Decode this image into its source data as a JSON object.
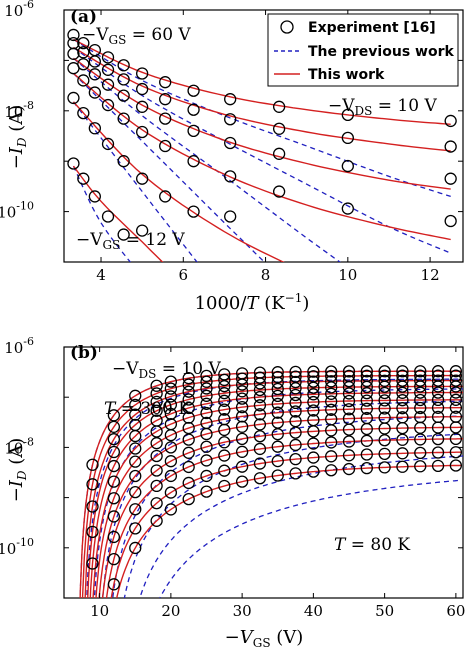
{
  "colors": {
    "experiment": "#000000",
    "previous": "#2020c0",
    "this_work": "#d42020",
    "axis": "#000000"
  },
  "chart_data": [
    {
      "panel_label": "(a)",
      "type": "scatter",
      "xlabel": "1000/T (K⁻¹)",
      "xlabel_parts": {
        "pre": "1000/",
        "var": "T",
        "mid": " (K",
        "sup": "−1",
        "post": ")"
      },
      "ylabel": "−I_D (A)",
      "xlim": [
        3.1,
        12.8
      ],
      "ylim": [
        1e-11,
        1e-06
      ],
      "yscale": "log",
      "xticks": [
        {
          "value": 4,
          "label": "4"
        },
        {
          "value": 6,
          "label": "6"
        },
        {
          "value": 8,
          "label": "8"
        },
        {
          "value": 10,
          "label": "10"
        },
        {
          "value": 12,
          "label": "12"
        }
      ],
      "yticks": [
        {
          "value": 1e-10,
          "base": "10",
          "exp": "-10"
        },
        {
          "value": 1e-08,
          "base": "10",
          "exp": "-8"
        },
        {
          "value": 1e-06,
          "base": "10",
          "exp": "-6"
        }
      ],
      "legend": {
        "placement": "top-right",
        "entries": [
          {
            "label": "Experiment [16]",
            "marker": "circle"
          },
          {
            "label": "The previous work",
            "marker": "dashed"
          },
          {
            "label": "This work",
            "marker": "solid"
          }
        ]
      },
      "annotations": [
        {
          "prefix": "−V",
          "sub": "GS",
          "rest": " = 60 V"
        },
        {
          "prefix": "−V",
          "sub": "DS",
          "rest": " = 10 V"
        },
        {
          "prefix": "−V",
          "sub": "GS",
          "rest": " = 12 V"
        }
      ],
      "series": [
        {
          "x": [
            3.33,
            3.57,
            3.85,
            4.17,
            4.55,
            5.0,
            5.56,
            6.25,
            7.14,
            8.33,
            10.0,
            12.5
          ],
          "y": [
            3.2e-07,
            2.2e-07,
            1.6e-07,
            1.15e-07,
            8e-08,
            5.5e-08,
            3.7e-08,
            2.5e-08,
            1.7e-08,
            1.2e-08,
            8.3e-09,
            6.3e-09
          ]
        },
        {
          "x": [
            3.33,
            3.57,
            3.85,
            4.17,
            4.55,
            5.0,
            5.56,
            6.25,
            7.14,
            8.33,
            10.0,
            12.5
          ],
          "y": [
            2.2e-07,
            1.45e-07,
            9.5e-08,
            6.5e-08,
            4.2e-08,
            2.7e-08,
            1.7e-08,
            1.05e-08,
            6.8e-09,
            4.4e-09,
            2.9e-09,
            1.95e-09
          ]
        },
        {
          "x": [
            3.33,
            3.57,
            3.85,
            4.17,
            4.55,
            5.0,
            5.56,
            6.25,
            7.14,
            8.33,
            10.0,
            12.5
          ],
          "y": [
            1.35e-07,
            8.4e-08,
            5.3e-08,
            3.3e-08,
            2e-08,
            1.2e-08,
            7e-09,
            4e-09,
            2.3e-09,
            1.4e-09,
            8e-10,
            4.5e-10
          ]
        },
        {
          "x": [
            3.33,
            3.57,
            3.85,
            4.17,
            4.55,
            5.0,
            5.56,
            6.25,
            7.14,
            8.33,
            10.0,
            12.5
          ],
          "y": [
            7e-08,
            4e-08,
            2.3e-08,
            1.3e-08,
            7e-09,
            3.8e-09,
            2e-09,
            1e-09,
            5e-10,
            2.5e-10,
            1.15e-10,
            6.5e-11
          ]
        },
        {
          "x": [
            3.33,
            3.57,
            3.85,
            4.17,
            4.55,
            5.0,
            5.56,
            6.25,
            7.14
          ],
          "y": [
            1.8e-08,
            9e-09,
            4.5e-09,
            2.2e-09,
            1e-09,
            4.5e-10,
            2e-10,
            1e-10,
            8e-11
          ]
        },
        {
          "x": [
            3.33,
            3.57,
            3.85,
            4.17,
            4.55,
            5.0
          ],
          "y": [
            9e-10,
            4.5e-10,
            2e-10,
            8e-11,
            3.5e-11,
            4.2e-11
          ]
        }
      ],
      "this_work": [
        {
          "x": [
            3.33,
            5,
            7,
            9,
            11,
            12.5
          ],
          "y": [
            2.6e-07,
            5.8e-08,
            2e-08,
            1.05e-08,
            6.8e-09,
            5.4e-09
          ]
        },
        {
          "x": [
            3.33,
            5,
            7,
            9,
            11,
            12.5
          ],
          "y": [
            1.8e-07,
            3.1e-08,
            8.5e-09,
            3.8e-09,
            2.2e-09,
            1.6e-09
          ]
        },
        {
          "x": [
            3.33,
            5,
            7,
            9,
            11,
            12.5
          ],
          "y": [
            1.1e-07,
            1.3e-08,
            2.6e-09,
            9e-10,
            4.2e-10,
            2.8e-10
          ]
        },
        {
          "x": [
            3.33,
            5,
            7,
            9,
            11,
            12.5
          ],
          "y": [
            5.5e-08,
            4.2e-09,
            5.5e-10,
            1.35e-10,
            5e-11,
            2.8e-11
          ]
        },
        {
          "x": [
            3.33,
            5,
            7,
            9,
            10
          ],
          "y": [
            1.5e-08,
            5.5e-10,
            4e-11,
            6e-12,
            2.5e-12
          ]
        },
        {
          "x": [
            3.33,
            4,
            5,
            6,
            7
          ],
          "y": [
            8e-10,
            1.6e-10,
            2.5e-11,
            4e-12,
            8e-13
          ]
        }
      ],
      "previous_work": [
        {
          "x": [
            3.33,
            5,
            7,
            9,
            11,
            12.5
          ],
          "y": [
            2.6e-07,
            4e-08,
            8e-09,
            2e-09,
            5e-10,
            2e-10
          ]
        },
        {
          "x": [
            3.33,
            5,
            7,
            9,
            11,
            12.5
          ],
          "y": [
            1.8e-07,
            2e-08,
            2.5e-09,
            3.5e-10,
            5e-11,
            1.5e-11
          ]
        },
        {
          "x": [
            3.33,
            5,
            7,
            9,
            11
          ],
          "y": [
            1.1e-07,
            8e-09,
            5e-10,
            3e-11,
            2e-12
          ]
        },
        {
          "x": [
            3.33,
            5,
            7,
            9
          ],
          "y": [
            5.5e-08,
            2.5e-09,
            6e-11,
            1.5e-12
          ]
        },
        {
          "x": [
            3.33,
            5,
            7
          ],
          "y": [
            1.5e-08,
            2.5e-10,
            2e-12
          ]
        },
        {
          "x": [
            3.33,
            4,
            5,
            6
          ],
          "y": [
            8e-10,
            6e-11,
            5e-12,
            4e-13
          ]
        }
      ]
    },
    {
      "panel_label": "(b)",
      "type": "scatter",
      "xlabel": "−V_GS (V)",
      "ylabel": "−I_D (A)",
      "xlim": [
        5,
        61
      ],
      "ylim": [
        1e-11,
        1e-06
      ],
      "yscale": "log",
      "xticks": [
        {
          "value": 10,
          "label": "10"
        },
        {
          "value": 20,
          "label": "20"
        },
        {
          "value": 30,
          "label": "30"
        },
        {
          "value": 40,
          "label": "40"
        },
        {
          "value": 50,
          "label": "50"
        },
        {
          "value": 60,
          "label": "60"
        }
      ],
      "yticks": [
        {
          "value": 1e-10,
          "base": "10",
          "exp": "-10"
        },
        {
          "value": 1e-08,
          "base": "10",
          "exp": "-8"
        },
        {
          "value": 1e-06,
          "base": "10",
          "exp": "-6"
        }
      ],
      "annotations": [
        {
          "prefix": "−V",
          "sub": "DS",
          "rest": " = 10 V"
        },
        {
          "var": "T",
          "rest": " = 300 K"
        },
        {
          "var": "T",
          "rest": " = 80 K"
        }
      ],
      "curves": [
        {
          "Imax": 3.3e-07,
          "V0": 7.0,
          "alpha": 6.6
        },
        {
          "Imax": 2.7e-07,
          "V0": 7.3,
          "alpha": 7.2
        },
        {
          "Imax": 2.15e-07,
          "V0": 7.6,
          "alpha": 7.8
        },
        {
          "Imax": 1.65e-07,
          "V0": 7.9,
          "alpha": 8.3
        },
        {
          "Imax": 1.25e-07,
          "V0": 8.2,
          "alpha": 8.9
        },
        {
          "Imax": 9e-08,
          "V0": 8.5,
          "alpha": 9.5
        },
        {
          "Imax": 6.3e-08,
          "V0": 8.8,
          "alpha": 10.1
        },
        {
          "Imax": 4.2e-08,
          "V0": 9.1,
          "alpha": 10.7
        },
        {
          "Imax": 2.6e-08,
          "V0": 9.4,
          "alpha": 11.3
        },
        {
          "Imax": 1.55e-08,
          "V0": 9.7,
          "alpha": 11.9
        },
        {
          "Imax": 8.5e-09,
          "V0": 10.0,
          "alpha": 12.5
        },
        {
          "Imax": 4.7e-09,
          "V0": 10.3,
          "alpha": 13.2
        }
      ],
      "previous_work": [
        {
          "Imax": 3.3e-07,
          "V0": 7.0,
          "alpha": 6.6
        },
        {
          "Imax": 2.3e-07,
          "V0": 7.8,
          "alpha": 8.6
        },
        {
          "Imax": 1.5e-07,
          "V0": 8.7,
          "alpha": 11.0
        },
        {
          "Imax": 9e-08,
          "V0": 9.6,
          "alpha": 13.8
        },
        {
          "Imax": 5e-08,
          "V0": 10.6,
          "alpha": 17.0
        },
        {
          "Imax": 2.5e-08,
          "V0": 11.6,
          "alpha": 20.7
        },
        {
          "Imax": 1.1e-08,
          "V0": 12.7,
          "alpha": 24.7
        },
        {
          "Imax": 4.5e-09,
          "V0": 13.8,
          "alpha": 29.0
        }
      ],
      "x_points": [
        6,
        9,
        12,
        15,
        18,
        20,
        22.5,
        25,
        27.5,
        30,
        32.5,
        35,
        37.5,
        40,
        42.5,
        45,
        47.5,
        50,
        52.5,
        55,
        57.5,
        60
      ]
    }
  ]
}
